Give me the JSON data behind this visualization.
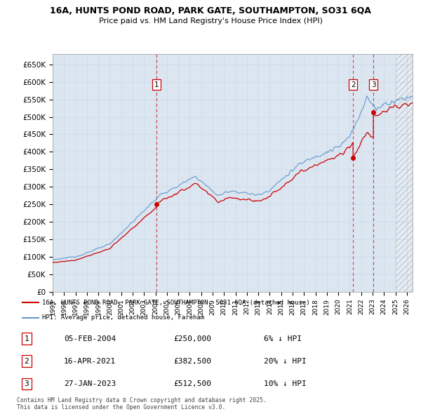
{
  "title_line1": "16A, HUNTS POND ROAD, PARK GATE, SOUTHAMPTON, SO31 6QA",
  "title_line2": "Price paid vs. HM Land Registry's House Price Index (HPI)",
  "legend_label_red": "16A, HUNTS POND ROAD, PARK GATE, SOUTHAMPTON, SO31 6QA (detached house)",
  "legend_label_blue": "HPI: Average price, detached house, Fareham",
  "transactions": [
    {
      "num": 1,
      "date_dec": 2004.09,
      "price": 250000,
      "label": "05-FEB-2004",
      "amount": "£250,000",
      "pct": "6% ↓ HPI"
    },
    {
      "num": 2,
      "date_dec": 2021.29,
      "price": 382500,
      "label": "16-APR-2021",
      "amount": "£382,500",
      "pct": "20% ↓ HPI"
    },
    {
      "num": 3,
      "date_dec": 2023.07,
      "price": 512500,
      "label": "27-JAN-2023",
      "amount": "£512,500",
      "pct": "10% ↓ HPI"
    }
  ],
  "footer": "Contains HM Land Registry data © Crown copyright and database right 2025.\nThis data is licensed under the Open Government Licence v3.0.",
  "ylim": [
    0,
    680000
  ],
  "xlim_start": 1995.0,
  "xlim_end": 2026.5,
  "yticks": [
    0,
    50000,
    100000,
    150000,
    200000,
    250000,
    300000,
    350000,
    400000,
    450000,
    500000,
    550000,
    600000,
    650000
  ],
  "ytick_labels": [
    "£0",
    "£50K",
    "£100K",
    "£150K",
    "£200K",
    "£250K",
    "£300K",
    "£350K",
    "£400K",
    "£450K",
    "£500K",
    "£550K",
    "£600K",
    "£650K"
  ],
  "grid_color": "#c8d8e8",
  "bg_color": "#dce6f1",
  "red_color": "#cc0000",
  "blue_color": "#6699cc",
  "vline_color": "#cc0000",
  "hatch_start": 2025.0
}
